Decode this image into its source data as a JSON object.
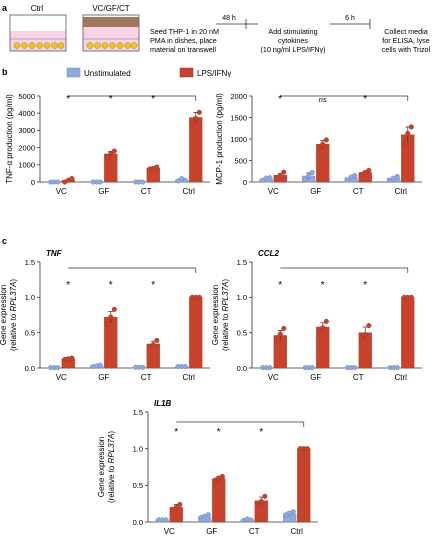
{
  "panel_a": {
    "label": "a",
    "well_ctrl_label": "Ctrl",
    "well_treat_label": "VC/GF/CT",
    "steps": [
      {
        "lines": [
          "Seed THP-1 in 20 nM",
          "PMA in dishes, place",
          "material on transwell"
        ]
      },
      {
        "lines": [
          "Add stimulating",
          "cytokines",
          "(10 ng/ml LPS/IFNγ)"
        ]
      },
      {
        "lines": [
          "Collect media",
          "for ELISA, lyse",
          "cells with Trizol"
        ]
      }
    ],
    "times": [
      "48 h",
      "6 h"
    ]
  },
  "legend": {
    "unstim": "Unstimulated",
    "lps": "LPS/IFNγ"
  },
  "colors": {
    "unstim": "#8ea9db",
    "lps": "#c8432b",
    "unstim_edge": "#6f8bc4",
    "lps_edge": "#a33520"
  },
  "chart_data": [
    {
      "panel_label": "b",
      "type": "bar",
      "ylabel": "TNF-α production (pg/ml)",
      "ylim": [
        0,
        5000
      ],
      "yticks": [
        "0",
        "1000",
        "2000",
        "3000",
        "4000",
        "5000"
      ],
      "categories": [
        "VC",
        "GF",
        "CT",
        "Ctrl"
      ],
      "series": [
        {
          "name": "Unstimulated",
          "values": [
            0,
            0,
            0,
            120
          ],
          "err": [
            0,
            0,
            0,
            30
          ],
          "points": [
            [
              0,
              0,
              0
            ],
            [
              0,
              0,
              0
            ],
            [
              0,
              0,
              0
            ],
            [
              60,
              200,
              100
            ]
          ]
        },
        {
          "name": "LPS/IFNγ",
          "values": [
            100,
            1630,
            800,
            3750
          ],
          "err": [
            40,
            150,
            80,
            300
          ],
          "points": [
            [
              0,
              100,
              200
            ],
            [
              1450,
              1650,
              1800
            ],
            [
              750,
              790,
              870
            ],
            [
              3350,
              3700,
              4050
            ]
          ]
        }
      ],
      "sig": [
        "*",
        "*",
        "*"
      ]
    },
    {
      "panel_label": "",
      "type": "bar",
      "ylabel": "MCP-1 production (pg/ml)",
      "ylim": [
        0,
        2000
      ],
      "yticks": [
        "0",
        "500",
        "1000",
        "1500",
        "2000"
      ],
      "categories": [
        "VC",
        "GF",
        "CT",
        "Ctrl"
      ],
      "series": [
        {
          "name": "Unstimulated",
          "values": [
            75,
            140,
            100,
            90
          ],
          "err": [
            25,
            70,
            35,
            30
          ],
          "points": [
            [
              40,
              90,
              100
            ],
            [
              60,
              150,
              220
            ],
            [
              50,
              120,
              150
            ],
            [
              40,
              90,
              130
            ]
          ]
        },
        {
          "name": "LPS/IFNγ",
          "values": [
            160,
            880,
            220,
            1100
          ],
          "err": [
            40,
            90,
            35,
            180
          ],
          "points": [
            [
              100,
              150,
              230
            ],
            [
              790,
              880,
              980
            ],
            [
              180,
              220,
              270
            ],
            [
              880,
              1130,
              1280
            ]
          ]
        }
      ],
      "sig": [
        "*",
        "ns",
        "*"
      ]
    },
    {
      "panel_label": "c",
      "type": "bar",
      "gene": "TNF",
      "ylabel_lines": [
        "Gene expression",
        "(relative to RPL37A)"
      ],
      "ylim": [
        0,
        1.5
      ],
      "yticks": [
        "0.0",
        "0.5",
        "1.0",
        "1.5"
      ],
      "categories": [
        "VC",
        "GF",
        "CT",
        "Ctrl"
      ],
      "series": [
        {
          "name": "Unstimulated",
          "values": [
            0.005,
            0.03,
            0.01,
            0.02
          ],
          "err": [
            0,
            0,
            0,
            0
          ],
          "points": [
            [
              0.005,
              0.005,
              0.005
            ],
            [
              0.02,
              0.03,
              0.04
            ],
            [
              0.01,
              0.01,
              0.01
            ],
            [
              0.02,
              0.02,
              0.02
            ]
          ]
        },
        {
          "name": "LPS/IFNγ",
          "values": [
            0.13,
            0.72,
            0.34,
            1.0
          ],
          "err": [
            0.02,
            0.08,
            0.04,
            0
          ],
          "points": [
            [
              0.12,
              0.13,
              0.14
            ],
            [
              0.62,
              0.72,
              0.83
            ],
            [
              0.29,
              0.33,
              0.39
            ],
            [
              1.0,
              1.0,
              1.0
            ]
          ]
        }
      ],
      "sig": [
        "*",
        "*",
        "*"
      ]
    },
    {
      "panel_label": "",
      "type": "bar",
      "gene": "CCL2",
      "ylabel_lines": [
        "Gene expression",
        "(relative to RPL37A)"
      ],
      "ylim": [
        0,
        1.5
      ],
      "yticks": [
        "0.0",
        "0.5",
        "1.0",
        "1.5"
      ],
      "categories": [
        "VC",
        "GF",
        "CT",
        "Ctrl"
      ],
      "series": [
        {
          "name": "Unstimulated",
          "values": [
            0.005,
            0.005,
            0.005,
            0.005
          ],
          "err": [
            0,
            0,
            0,
            0
          ],
          "points": [
            [
              0.005,
              0.005,
              0.005
            ],
            [
              0.005,
              0.005,
              0.005
            ],
            [
              0.005,
              0.005,
              0.005
            ],
            [
              0.005,
              0.005,
              0.005
            ]
          ]
        },
        {
          "name": "LPS/IFNγ",
          "values": [
            0.46,
            0.58,
            0.5,
            1.0
          ],
          "err": [
            0.07,
            0.06,
            0.08,
            0
          ],
          "points": [
            [
              0.38,
              0.48,
              0.56
            ],
            [
              0.52,
              0.57,
              0.66
            ],
            [
              0.42,
              0.47,
              0.6
            ],
            [
              1.0,
              1.0,
              1.0
            ]
          ]
        }
      ],
      "sig": [
        "*",
        "*",
        "*"
      ]
    },
    {
      "panel_label": "",
      "type": "bar",
      "gene": "IL1B",
      "ylabel_lines": [
        "Gene expression",
        "(relative to RPL37A)"
      ],
      "ylim": [
        0,
        1.5
      ],
      "yticks": [
        "0.0",
        "0.5",
        "1.0",
        "1.5"
      ],
      "categories": [
        "VC",
        "GF",
        "CT",
        "Ctrl"
      ],
      "series": [
        {
          "name": "Unstimulated",
          "values": [
            0.03,
            0.07,
            0.03,
            0.11
          ],
          "err": [
            0.005,
            0.02,
            0.01,
            0.03
          ],
          "points": [
            [
              0.03,
              0.03,
              0.03
            ],
            [
              0.06,
              0.08,
              0.1
            ],
            [
              0.02,
              0.04,
              0.03
            ],
            [
              0.1,
              0.12,
              0.14
            ]
          ]
        },
        {
          "name": "LPS/IFNγ",
          "values": [
            0.2,
            0.59,
            0.29,
            1.0
          ],
          "err": [
            0.04,
            0.03,
            0.05,
            0
          ],
          "points": [
            [
              0.17,
              0.2,
              0.24
            ],
            [
              0.57,
              0.6,
              0.62
            ],
            [
              0.24,
              0.28,
              0.35
            ],
            [
              1.0,
              1.0,
              1.0
            ]
          ]
        }
      ],
      "sig": [
        "*",
        "*",
        "*"
      ]
    }
  ]
}
